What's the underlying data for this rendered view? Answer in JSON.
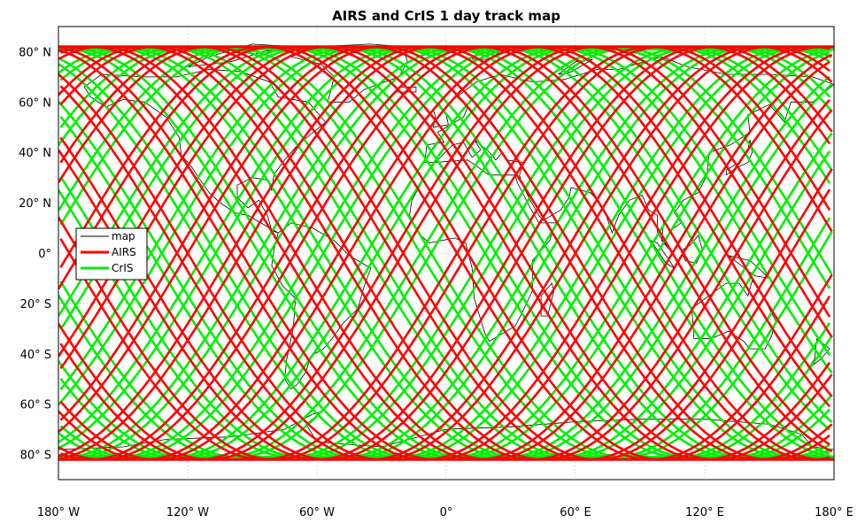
{
  "chart_data": {
    "type": "line",
    "title": "AIRS and CrIS 1 day track map",
    "xlabel": "",
    "ylabel": "",
    "xlim": [
      -180,
      180
    ],
    "ylim": [
      -90,
      90
    ],
    "grid": "on (dotted)",
    "x_ticks": [
      {
        "value": -180,
        "label": "180° W"
      },
      {
        "value": -120,
        "label": "120° W"
      },
      {
        "value": -60,
        "label": "60° W"
      },
      {
        "value": 0,
        "label": "0°"
      },
      {
        "value": 60,
        "label": "60° E"
      },
      {
        "value": 120,
        "label": "120° E"
      },
      {
        "value": 180,
        "label": "180° E"
      }
    ],
    "y_ticks": [
      {
        "value": 80,
        "label": "80° N"
      },
      {
        "value": 60,
        "label": "60° N"
      },
      {
        "value": 40,
        "label": "40° N"
      },
      {
        "value": 20,
        "label": "20° N"
      },
      {
        "value": 0,
        "label": "0°"
      },
      {
        "value": -20,
        "label": "20° S"
      },
      {
        "value": -40,
        "label": "40° S"
      },
      {
        "value": -60,
        "label": "60° S"
      },
      {
        "value": -80,
        "label": "80° S"
      }
    ],
    "legend_position": "left",
    "series": [
      {
        "name": "map",
        "color": "#000000",
        "kind": "coastline"
      },
      {
        "name": "AIRS",
        "color": "#ff0000",
        "kind": "ground-track",
        "max_latitude": 82,
        "ascending_equator_crossings_lon": [
          -170,
          -145,
          -120,
          -95,
          -70,
          -45,
          -20,
          5,
          30,
          55,
          80,
          105,
          130,
          155
        ]
      },
      {
        "name": "CrIS",
        "color": "#00ee00",
        "kind": "ground-track",
        "max_latitude": 81,
        "ascending_equator_crossings_lon": [
          -157,
          -132,
          -107,
          -82,
          -57,
          -32,
          -7,
          18,
          43,
          68,
          93,
          118,
          143,
          168
        ]
      }
    ]
  }
}
